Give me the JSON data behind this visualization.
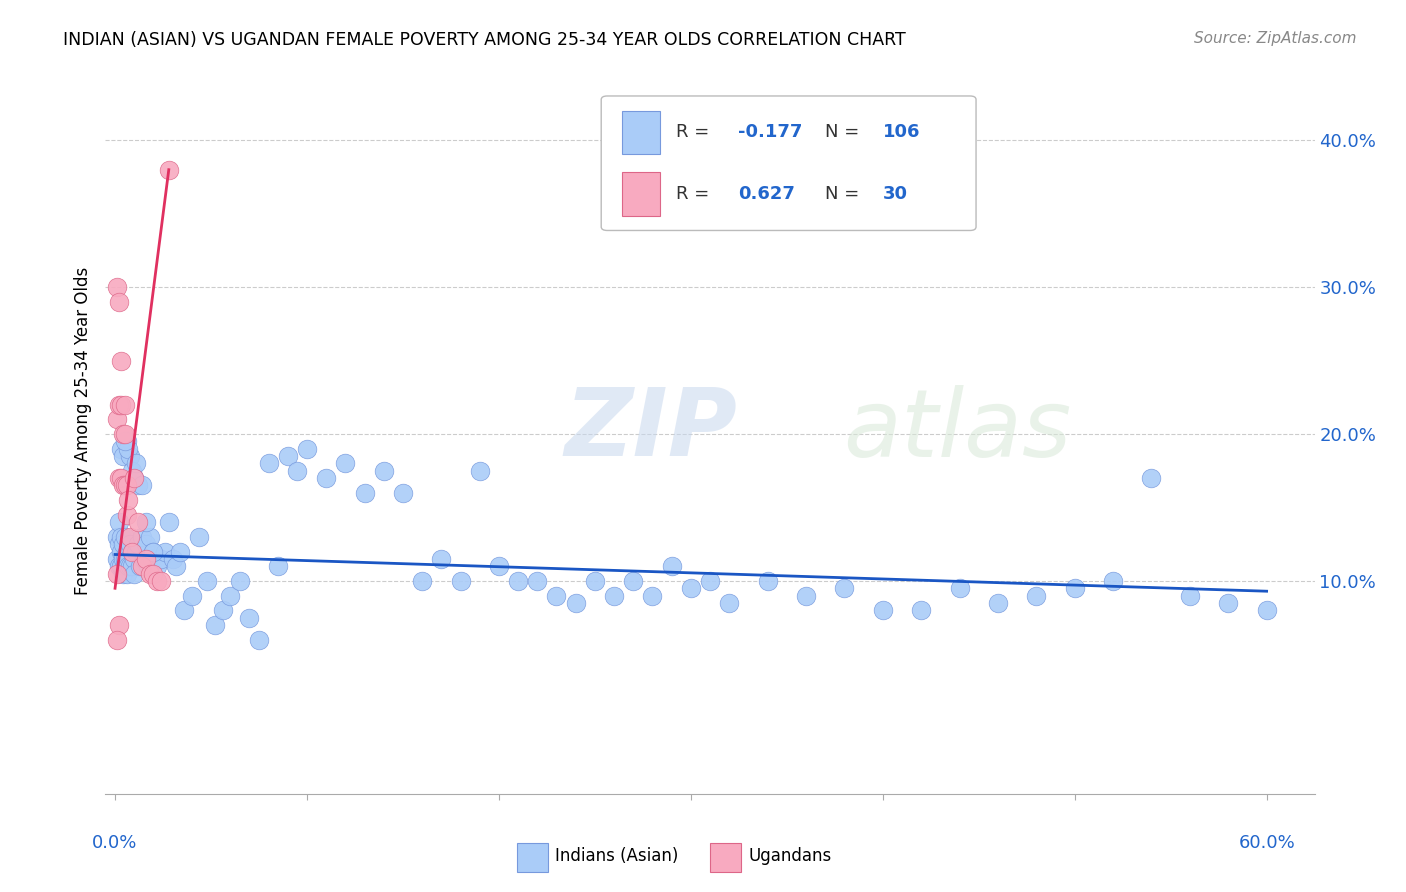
{
  "title": "INDIAN (ASIAN) VS UGANDAN FEMALE POVERTY AMONG 25-34 YEAR OLDS CORRELATION CHART",
  "source": "Source: ZipAtlas.com",
  "ylabel": "Female Poverty Among 25-34 Year Olds",
  "watermark_zip": "ZIP",
  "watermark_atlas": "atlas",
  "legend_indian_R": "-0.177",
  "legend_indian_N": "106",
  "legend_ugandan_R": "0.627",
  "legend_ugandan_N": "30",
  "indian_color": "#aaccf8",
  "ugandan_color": "#f8aac0",
  "indian_line_color": "#1a56c4",
  "ugandan_line_color": "#e03060",
  "indian_color_edge": "#7799dd",
  "ugandan_color_edge": "#dd6688",
  "xlim": [
    -0.005,
    0.625
  ],
  "ylim": [
    -0.045,
    0.45
  ],
  "ytick_vals": [
    0.1,
    0.2,
    0.3,
    0.4
  ],
  "ytick_labels": [
    "10.0%",
    "20.0%",
    "30.0%",
    "40.0%"
  ],
  "background_color": "#ffffff",
  "grid_color": "#cccccc",
  "indian_x": [
    0.001,
    0.001,
    0.002,
    0.002,
    0.002,
    0.003,
    0.003,
    0.003,
    0.004,
    0.004,
    0.004,
    0.005,
    0.005,
    0.005,
    0.006,
    0.006,
    0.006,
    0.007,
    0.007,
    0.008,
    0.008,
    0.009,
    0.009,
    0.01,
    0.01,
    0.011,
    0.012,
    0.013,
    0.014,
    0.015,
    0.016,
    0.017,
    0.018,
    0.019,
    0.02,
    0.022,
    0.024,
    0.026,
    0.028,
    0.03,
    0.032,
    0.034,
    0.036,
    0.04,
    0.044,
    0.048,
    0.052,
    0.056,
    0.06,
    0.065,
    0.07,
    0.075,
    0.08,
    0.085,
    0.09,
    0.095,
    0.1,
    0.11,
    0.12,
    0.13,
    0.14,
    0.15,
    0.16,
    0.17,
    0.18,
    0.19,
    0.2,
    0.21,
    0.22,
    0.23,
    0.24,
    0.25,
    0.26,
    0.27,
    0.28,
    0.29,
    0.3,
    0.31,
    0.32,
    0.34,
    0.36,
    0.38,
    0.4,
    0.42,
    0.44,
    0.46,
    0.48,
    0.5,
    0.52,
    0.54,
    0.56,
    0.58,
    0.6,
    0.003,
    0.004,
    0.006,
    0.008,
    0.01,
    0.012,
    0.007,
    0.009,
    0.005,
    0.011,
    0.014,
    0.016,
    0.02
  ],
  "indian_y": [
    0.115,
    0.13,
    0.125,
    0.11,
    0.14,
    0.12,
    0.11,
    0.13,
    0.115,
    0.105,
    0.125,
    0.115,
    0.11,
    0.13,
    0.11,
    0.12,
    0.105,
    0.115,
    0.11,
    0.11,
    0.125,
    0.11,
    0.12,
    0.115,
    0.105,
    0.12,
    0.125,
    0.11,
    0.13,
    0.115,
    0.125,
    0.11,
    0.13,
    0.115,
    0.12,
    0.11,
    0.115,
    0.12,
    0.14,
    0.115,
    0.11,
    0.12,
    0.08,
    0.09,
    0.13,
    0.1,
    0.07,
    0.08,
    0.09,
    0.1,
    0.075,
    0.06,
    0.18,
    0.11,
    0.185,
    0.175,
    0.19,
    0.17,
    0.18,
    0.16,
    0.175,
    0.16,
    0.1,
    0.115,
    0.1,
    0.175,
    0.11,
    0.1,
    0.1,
    0.09,
    0.085,
    0.1,
    0.09,
    0.1,
    0.09,
    0.11,
    0.095,
    0.1,
    0.085,
    0.1,
    0.09,
    0.095,
    0.08,
    0.08,
    0.095,
    0.085,
    0.09,
    0.095,
    0.1,
    0.17,
    0.09,
    0.085,
    0.08,
    0.19,
    0.185,
    0.195,
    0.185,
    0.17,
    0.165,
    0.19,
    0.175,
    0.195,
    0.18,
    0.165,
    0.14,
    0.12
  ],
  "ugandan_x": [
    0.001,
    0.001,
    0.001,
    0.002,
    0.002,
    0.002,
    0.003,
    0.003,
    0.003,
    0.004,
    0.004,
    0.005,
    0.005,
    0.005,
    0.006,
    0.006,
    0.007,
    0.008,
    0.009,
    0.01,
    0.012,
    0.014,
    0.016,
    0.018,
    0.02,
    0.022,
    0.024,
    0.002,
    0.001,
    0.028
  ],
  "ugandan_y": [
    0.105,
    0.21,
    0.3,
    0.29,
    0.22,
    0.17,
    0.25,
    0.22,
    0.17,
    0.2,
    0.165,
    0.165,
    0.2,
    0.22,
    0.165,
    0.145,
    0.155,
    0.13,
    0.12,
    0.17,
    0.14,
    0.11,
    0.115,
    0.105,
    0.105,
    0.1,
    0.1,
    0.07,
    0.06,
    0.38
  ],
  "indian_trend_x": [
    0.0,
    0.6
  ],
  "indian_trend_y": [
    0.118,
    0.093
  ],
  "ugandan_trend_x": [
    0.0,
    0.028
  ],
  "ugandan_trend_y": [
    0.095,
    0.38
  ]
}
